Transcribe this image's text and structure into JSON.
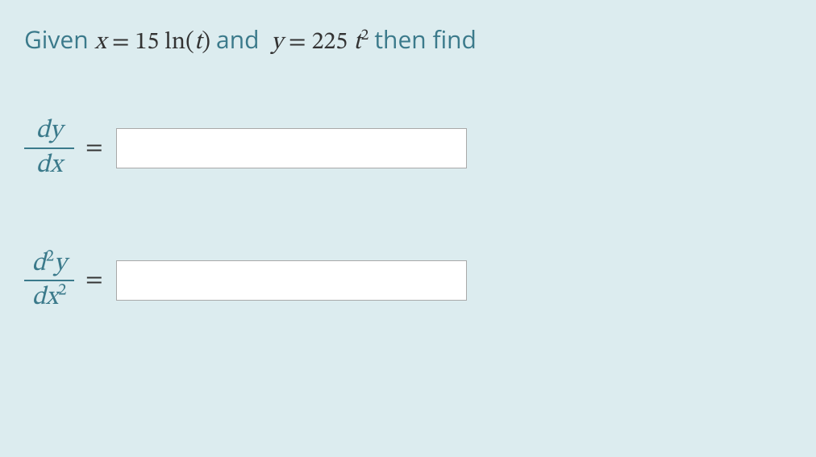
{
  "prompt": {
    "given_word": "Given",
    "x_var": "x",
    "eq1": "=",
    "coef1": "15",
    "func": "ln",
    "arg_open": "(",
    "arg_var": "t",
    "arg_close": ")",
    "and_word": "and",
    "y_var": "y",
    "eq2": "=",
    "coef2": "225",
    "t_var": "t",
    "t_exp": "2",
    "then_find": "then find"
  },
  "row1": {
    "num": "dy",
    "den": "dx",
    "eq": "=",
    "value": ""
  },
  "row2": {
    "num_d": "d",
    "num_exp": "2",
    "num_y": "y",
    "den_dx": "dx",
    "den_exp": "2",
    "eq": "=",
    "value": ""
  },
  "colors": {
    "background": "#dcecef",
    "text_teal": "#3b7a8b",
    "math_dark": "#333333",
    "input_bg": "#ffffff",
    "input_border": "#a9a9a9"
  }
}
